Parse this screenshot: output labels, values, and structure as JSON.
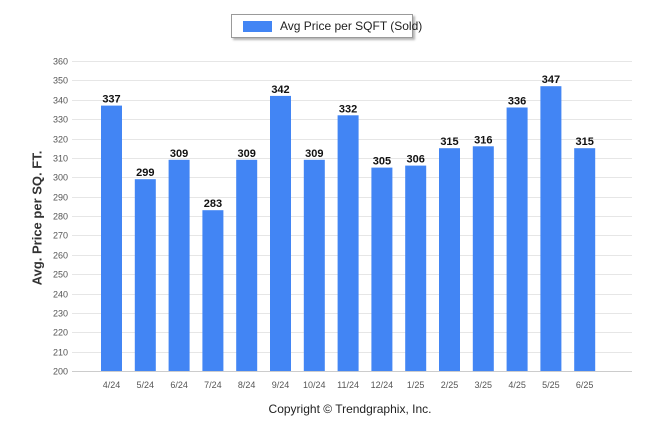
{
  "chart_data": {
    "type": "bar",
    "title": "",
    "xlabel": "",
    "ylabel": "Avg. Price per SQ. FT.",
    "ylim": [
      200,
      360
    ],
    "ytick_step": 10,
    "grid": true,
    "legend_position": "top-center",
    "categories": [
      "4/24",
      "5/24",
      "6/24",
      "7/24",
      "8/24",
      "9/24",
      "10/24",
      "11/24",
      "12/24",
      "1/25",
      "2/25",
      "3/25",
      "4/25",
      "5/25",
      "6/25"
    ],
    "series": [
      {
        "name": "Avg Price per SQFT (Sold)",
        "color": "#4285f4",
        "values": [
          337,
          299,
          309,
          283,
          309,
          342,
          309,
          332,
          305,
          306,
          315,
          316,
          336,
          347,
          315
        ]
      }
    ],
    "footer": "Copyright © Trendgraphix, Inc."
  },
  "colors": {
    "bar": "#4285f4",
    "grid": "#e6e6e6",
    "axis_text": "#555555"
  }
}
